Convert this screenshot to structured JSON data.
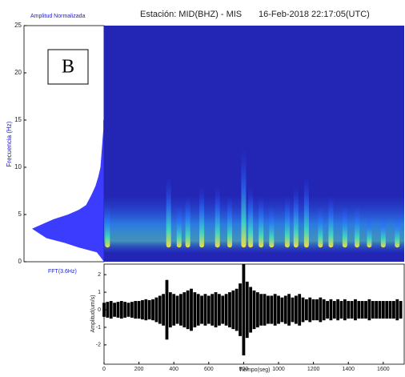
{
  "panel_label": "B",
  "chart_data": [
    {
      "type": "fft",
      "x_label": "Amplitud Normalizada",
      "y_label": "Frecuencia (Hz)",
      "annotation": "FFT(3.6Hz)",
      "color": "#1a1aff",
      "xlim": [
        0,
        1
      ],
      "ylim": [
        0,
        25
      ],
      "yticks": [
        0,
        5,
        10,
        15,
        20,
        25
      ],
      "x": [
        0.5,
        1,
        1.5,
        2,
        2.5,
        3,
        3.5,
        4,
        4.5,
        5,
        5.5,
        6,
        7,
        8,
        9,
        10,
        11,
        12,
        13,
        14,
        15
      ],
      "values": [
        0.05,
        0.1,
        0.35,
        0.55,
        0.8,
        0.9,
        1.0,
        0.85,
        0.7,
        0.5,
        0.35,
        0.25,
        0.18,
        0.12,
        0.08,
        0.05,
        0.04,
        0.03,
        0.02,
        0.01,
        0.01
      ]
    },
    {
      "type": "spectrogram",
      "title": "Estación: MID(BHZ) - MIS",
      "subtitle": "16-Feb-2018 22:17:05(UTC)",
      "xlim": [
        0,
        1720
      ],
      "ylim": [
        0,
        25
      ],
      "x": [
        20,
        370,
        430,
        480,
        560,
        650,
        720,
        800,
        840,
        900,
        960,
        1050,
        1100,
        1160,
        1240,
        1300,
        1380,
        1450,
        1520,
        1600,
        1680
      ],
      "values": [
        6,
        9,
        6,
        7,
        8,
        8,
        7,
        12,
        8,
        7,
        6,
        7,
        8,
        9,
        6,
        7,
        6,
        6,
        5,
        5,
        5
      ]
    },
    {
      "type": "seismogram",
      "x_label": "Tiempo(seg)",
      "y_label": "Amplitud(um/s)",
      "color": "#000000",
      "xlim": [
        0,
        1720
      ],
      "xticks": [
        0,
        200,
        400,
        600,
        800,
        1000,
        1200,
        1400,
        1600
      ],
      "ylim": [
        -3.1,
        2.6
      ],
      "yticks": [
        -2,
        -1,
        0,
        1,
        2
      ],
      "x": [
        0,
        20,
        40,
        60,
        80,
        100,
        120,
        140,
        160,
        180,
        200,
        220,
        240,
        260,
        280,
        300,
        320,
        340,
        360,
        380,
        400,
        420,
        440,
        460,
        480,
        500,
        520,
        540,
        560,
        580,
        600,
        620,
        640,
        660,
        680,
        700,
        720,
        740,
        760,
        780,
        800,
        820,
        840,
        860,
        880,
        900,
        920,
        940,
        960,
        980,
        1000,
        1020,
        1040,
        1060,
        1080,
        1100,
        1120,
        1140,
        1160,
        1180,
        1200,
        1220,
        1240,
        1260,
        1280,
        1300,
        1320,
        1340,
        1360,
        1380,
        1400,
        1420,
        1440,
        1460,
        1480,
        1500,
        1520,
        1540,
        1560,
        1580,
        1600,
        1620,
        1640,
        1660,
        1680,
        1700
      ],
      "values": [
        0.4,
        0.45,
        0.5,
        0.4,
        0.45,
        0.5,
        0.45,
        0.4,
        0.45,
        0.5,
        0.5,
        0.55,
        0.6,
        0.55,
        0.6,
        0.7,
        0.8,
        0.9,
        1.7,
        1.0,
        0.9,
        0.8,
        0.9,
        1.0,
        1.1,
        1.2,
        1.0,
        0.9,
        0.8,
        0.9,
        0.8,
        0.9,
        1.0,
        0.9,
        0.8,
        0.9,
        1.0,
        1.1,
        1.2,
        1.5,
        2.6,
        1.6,
        1.3,
        1.1,
        1.0,
        0.9,
        0.9,
        0.8,
        0.8,
        0.9,
        0.8,
        0.7,
        0.8,
        0.9,
        0.7,
        0.8,
        0.9,
        0.7,
        0.6,
        0.7,
        0.6,
        0.6,
        0.7,
        0.6,
        0.5,
        0.6,
        0.5,
        0.6,
        0.5,
        0.6,
        0.5,
        0.5,
        0.6,
        0.5,
        0.5,
        0.5,
        0.6,
        0.5,
        0.5,
        0.5,
        0.5,
        0.5,
        0.5,
        0.5,
        0.6,
        0.5
      ]
    }
  ]
}
